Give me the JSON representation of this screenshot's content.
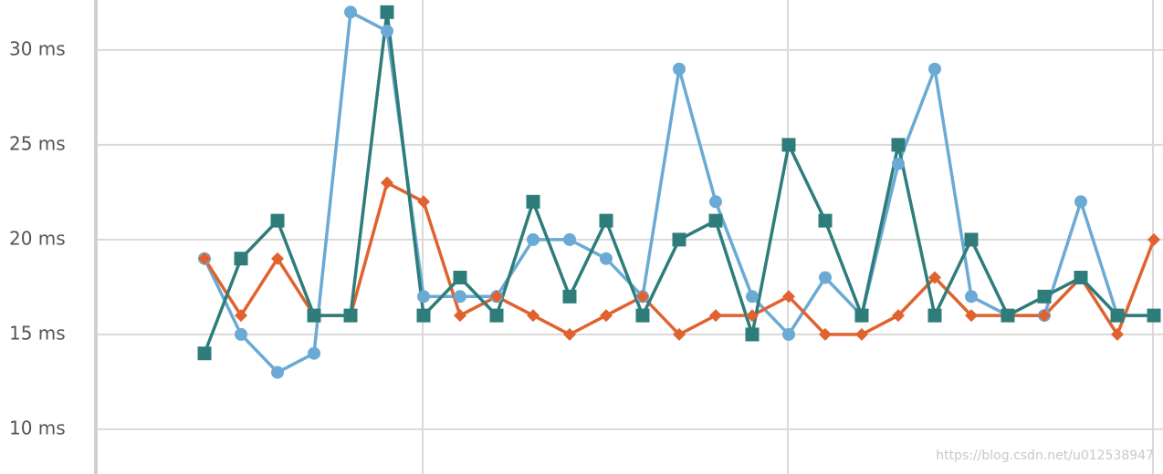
{
  "chart_data": {
    "type": "line",
    "categories": [
      null,
      null,
      null,
      null,
      null,
      null,
      null,
      null,
      null,
      null,
      null,
      null,
      null,
      null,
      null,
      null,
      null,
      null,
      null,
      null,
      null,
      null,
      null,
      null,
      null,
      null,
      null
    ],
    "series": [
      {
        "color": "#6aaad4",
        "marker": "circle",
        "values": [
          19,
          15,
          13,
          14,
          32,
          31,
          17,
          17,
          17,
          20,
          20,
          19,
          17,
          29,
          22,
          17,
          15,
          18,
          16,
          24,
          29,
          17,
          16,
          16,
          22,
          16,
          16
        ]
      },
      {
        "color": "#e0622f",
        "marker": "diamond",
        "values": [
          19,
          16,
          19,
          16,
          16,
          23,
          22,
          16,
          17,
          16,
          15,
          16,
          17,
          15,
          16,
          16,
          17,
          15,
          15,
          16,
          18,
          16,
          16,
          16,
          18,
          15,
          20
        ]
      },
      {
        "color": "#2e7d7b",
        "marker": "square",
        "values": [
          14,
          19,
          21,
          16,
          16,
          32,
          16,
          18,
          16,
          22,
          17,
          21,
          16,
          20,
          21,
          15,
          25,
          21,
          16,
          25,
          16,
          20,
          16,
          17,
          18,
          16,
          16
        ]
      }
    ],
    "ylim": [
      7.64,
      32.64
    ],
    "yticks": [
      {
        "value": 10,
        "label": "10 ms"
      },
      {
        "value": 15,
        "label": "15 ms"
      },
      {
        "value": 20,
        "label": "20 ms"
      },
      {
        "value": 25,
        "label": "25 ms"
      },
      {
        "value": 30,
        "label": "30 ms"
      }
    ],
    "grid": true,
    "watermark": "https://blog.csdn.net/u012538947"
  }
}
